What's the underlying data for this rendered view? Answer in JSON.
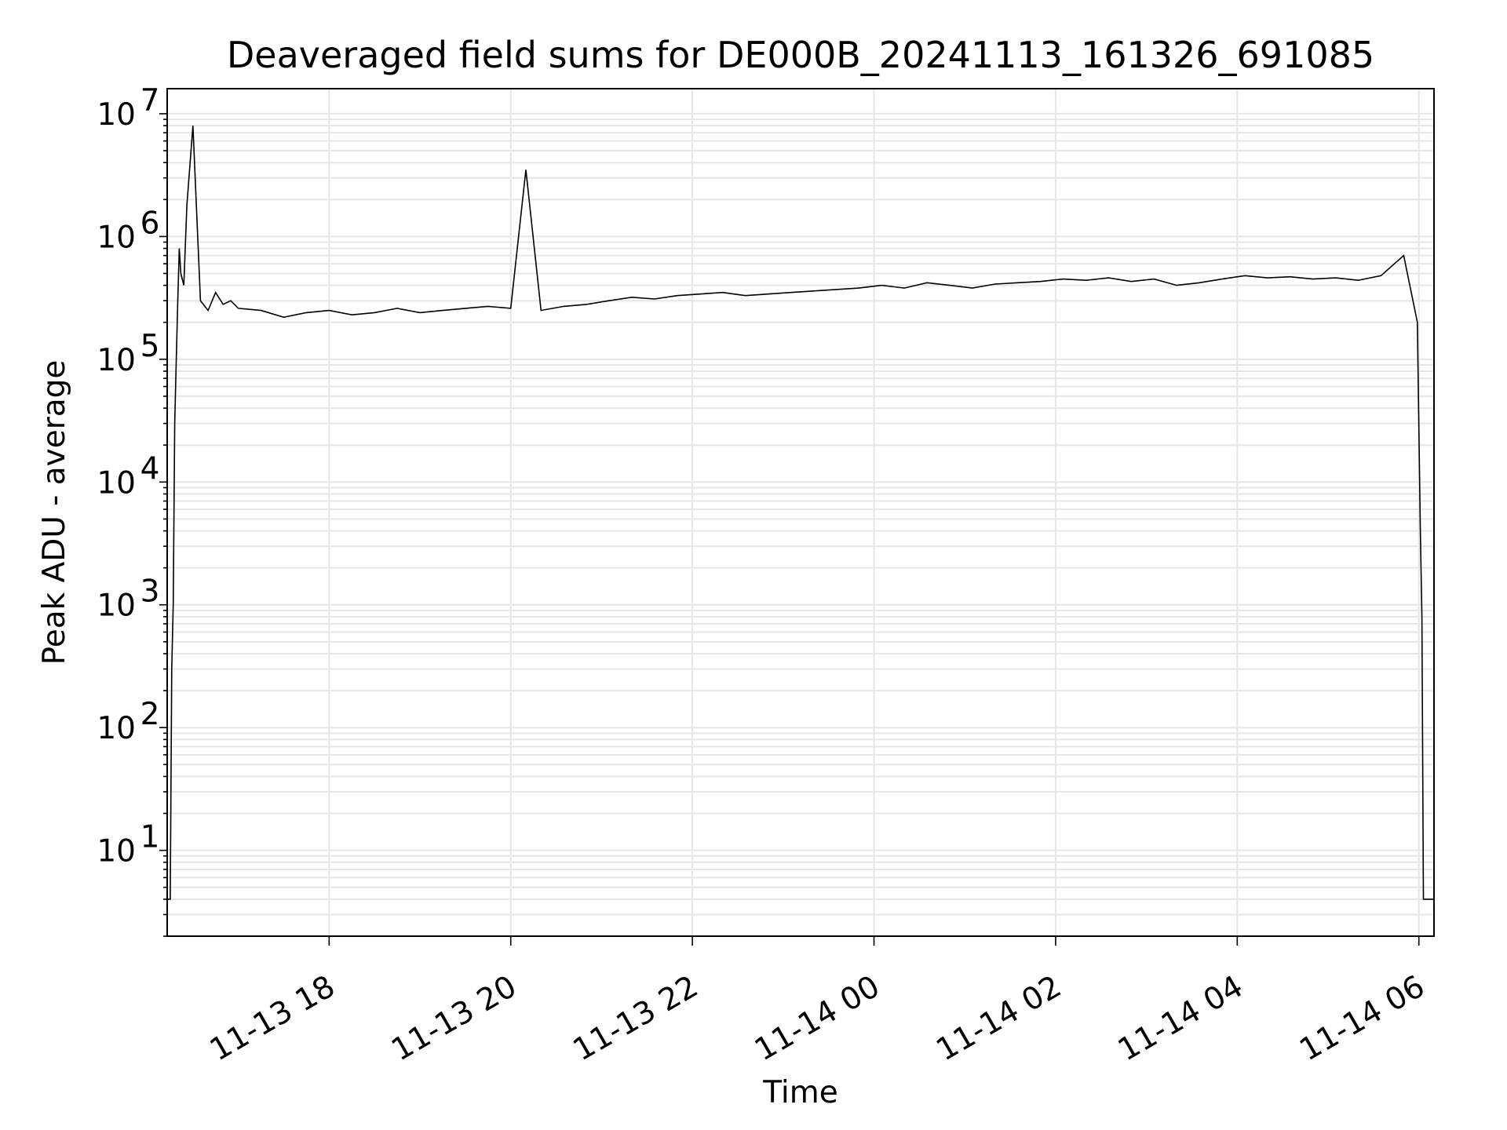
{
  "chart_data": {
    "type": "line",
    "title": "Deaveraged field sums for DE000B_20241113_161326_691085",
    "xlabel": "Time",
    "ylabel": "Peak ADU - average",
    "yscale": "log",
    "ylim": [
      2,
      16000000
    ],
    "xlim": [
      "2024-11-13 16:13",
      "2024-11-14 06:10"
    ],
    "x_ticks": [
      {
        "value": "2024-11-13 18:00",
        "label": "11-13 18"
      },
      {
        "value": "2024-11-13 20:00",
        "label": "11-13 20"
      },
      {
        "value": "2024-11-13 22:00",
        "label": "11-13 22"
      },
      {
        "value": "2024-11-14 00:00",
        "label": "11-14 00"
      },
      {
        "value": "2024-11-14 02:00",
        "label": "11-14 02"
      },
      {
        "value": "2024-11-14 04:00",
        "label": "11-14 04"
      },
      {
        "value": "2024-11-14 06:00",
        "label": "11-14 06"
      }
    ],
    "y_ticks": [
      {
        "value": 10,
        "base": "10",
        "exp": "1"
      },
      {
        "value": 100,
        "base": "10",
        "exp": "2"
      },
      {
        "value": 1000,
        "base": "10",
        "exp": "3"
      },
      {
        "value": 10000,
        "base": "10",
        "exp": "4"
      },
      {
        "value": 100000,
        "base": "10",
        "exp": "5"
      },
      {
        "value": 1000000,
        "base": "10",
        "exp": "6"
      },
      {
        "value": 10000000,
        "base": "10",
        "exp": "7"
      }
    ],
    "grid": true,
    "line_color": "#000000",
    "grid_color": "#e6e6e6",
    "series": [
      {
        "x": [
          "2024-11-13 16:13",
          "2024-11-13 16:15",
          "2024-11-13 16:16",
          "2024-11-13 16:17",
          "2024-11-13 16:18",
          "2024-11-13 16:19",
          "2024-11-13 16:20",
          "2024-11-13 16:21",
          "2024-11-13 16:22",
          "2024-11-13 16:24",
          "2024-11-13 16:26",
          "2024-11-13 16:30",
          "2024-11-13 16:35",
          "2024-11-13 16:40",
          "2024-11-13 16:45",
          "2024-11-13 16:50",
          "2024-11-13 16:55",
          "2024-11-13 17:00",
          "2024-11-13 17:15",
          "2024-11-13 17:30",
          "2024-11-13 17:45",
          "2024-11-13 18:00",
          "2024-11-13 18:15",
          "2024-11-13 18:30",
          "2024-11-13 18:45",
          "2024-11-13 19:00",
          "2024-11-13 19:15",
          "2024-11-13 19:30",
          "2024-11-13 19:45",
          "2024-11-13 20:00",
          "2024-11-13 20:10",
          "2024-11-13 20:20",
          "2024-11-13 20:35",
          "2024-11-13 20:50",
          "2024-11-13 21:05",
          "2024-11-13 21:20",
          "2024-11-13 21:35",
          "2024-11-13 21:50",
          "2024-11-13 22:05",
          "2024-11-13 22:20",
          "2024-11-13 22:35",
          "2024-11-13 22:50",
          "2024-11-13 23:05",
          "2024-11-13 23:20",
          "2024-11-13 23:35",
          "2024-11-13 23:50",
          "2024-11-14 00:05",
          "2024-11-14 00:20",
          "2024-11-14 00:35",
          "2024-11-14 00:50",
          "2024-11-14 01:05",
          "2024-11-14 01:20",
          "2024-11-14 01:35",
          "2024-11-14 01:50",
          "2024-11-14 02:05",
          "2024-11-14 02:20",
          "2024-11-14 02:35",
          "2024-11-14 02:50",
          "2024-11-14 03:05",
          "2024-11-14 03:20",
          "2024-11-14 03:35",
          "2024-11-14 03:50",
          "2024-11-14 04:05",
          "2024-11-14 04:20",
          "2024-11-14 04:35",
          "2024-11-14 04:50",
          "2024-11-14 05:05",
          "2024-11-14 05:20",
          "2024-11-14 05:35",
          "2024-11-14 05:50",
          "2024-11-14 05:59",
          "2024-11-14 06:01",
          "2024-11-14 06:02",
          "2024-11-14 06:03",
          "2024-11-14 06:04",
          "2024-11-14 06:05",
          "2024-11-14 06:10"
        ],
        "y": [
          4,
          4,
          300,
          1000,
          30000,
          100000,
          300000,
          800000,
          500000,
          400000,
          1800000,
          8000000,
          300000,
          250000,
          350000,
          280000,
          300000,
          260000,
          250000,
          220000,
          240000,
          250000,
          230000,
          240000,
          260000,
          240000,
          250000,
          260000,
          270000,
          260000,
          3500000,
          250000,
          270000,
          280000,
          300000,
          320000,
          310000,
          330000,
          340000,
          350000,
          330000,
          340000,
          350000,
          360000,
          370000,
          380000,
          400000,
          380000,
          420000,
          400000,
          380000,
          410000,
          420000,
          430000,
          450000,
          440000,
          460000,
          430000,
          450000,
          400000,
          420000,
          450000,
          480000,
          460000,
          470000,
          450000,
          460000,
          440000,
          480000,
          700000,
          200000,
          4000,
          800,
          4,
          4,
          4,
          4
        ]
      }
    ]
  }
}
